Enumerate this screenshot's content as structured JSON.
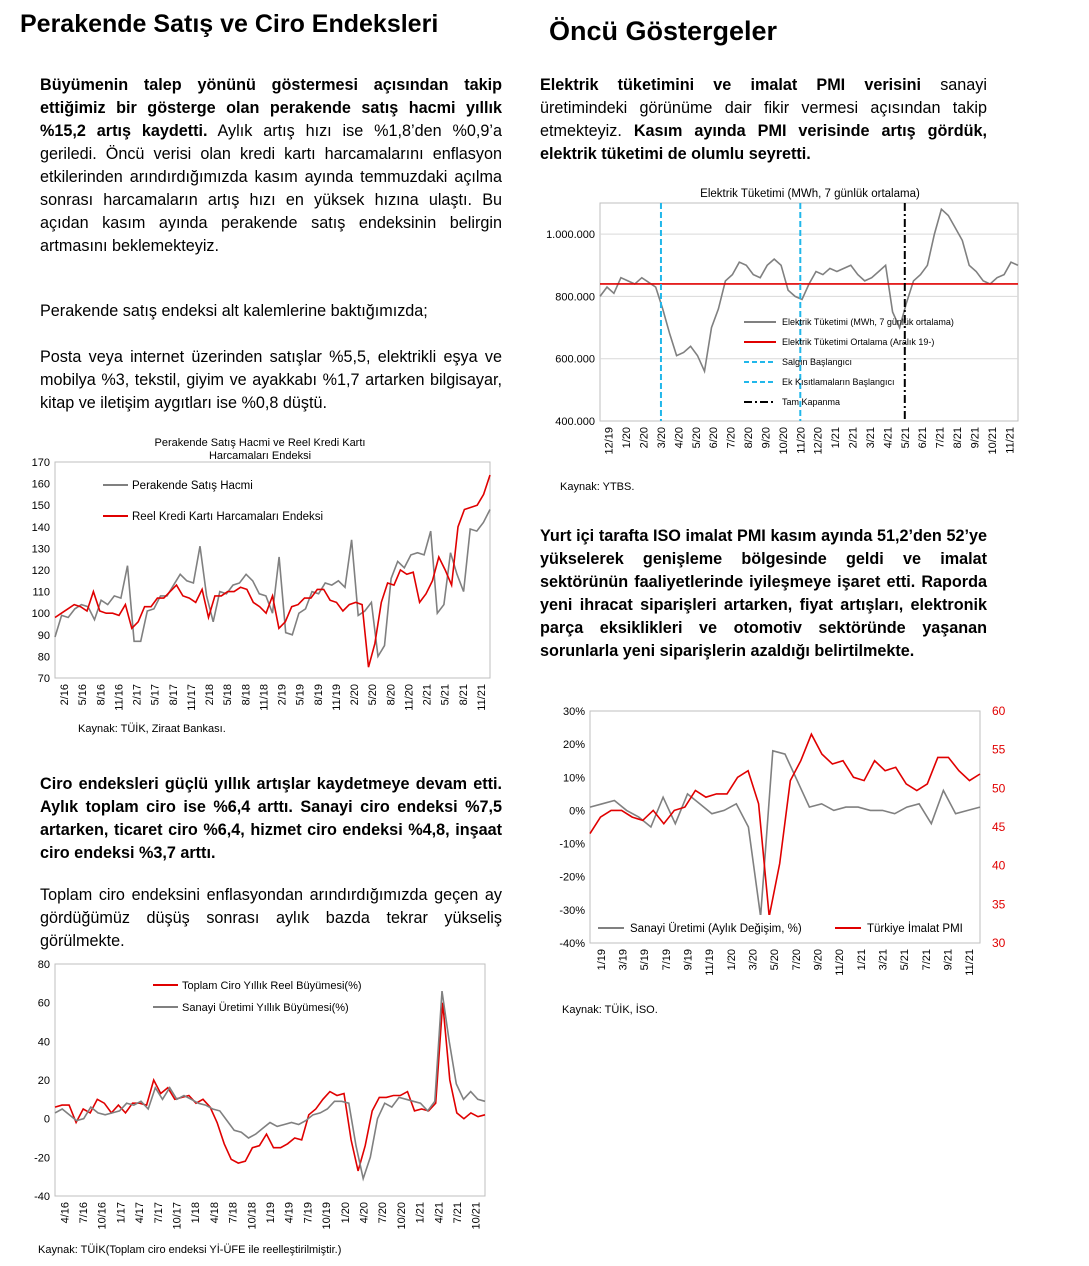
{
  "left": {
    "title": "Perakende Satış ve Ciro Endeksleri",
    "p1_bold": "Büyümenin talep yönünü göstermesi açısından takip ettiğimiz bir gösterge olan perakende satış hacmi yıllık %15,2 artış kaydetti.",
    "p1_rest": " Aylık artış hızı ise %1,8’den %0,9’a geriledi. Öncü verisi olan kredi kartı harcamalarını enflasyon etkilerinden arındırdığımızda kasım ayında temmuzdaki açılma sonrası harcamaların artış hızı en yüksek hızına ulaştı. Bu açıdan kasım ayında perakende satış endeksinin belirgin artmasını beklemekteyiz.",
    "p2": "Perakende satış endeksi alt kalemlerine baktığımızda;",
    "p3": "Posta veya internet üzerinden satışlar %5,5, elektrikli eşya ve mobilya %3, tekstil, giyim ve ayakkabı %1,7 artarken bilgisayar, kitap ve iletişim aygıtları ise %0,8 düştü.",
    "p4_bold": "Ciro endeksleri güçlü yıllık artışlar kaydetmeye devam etti. Aylık toplam ciro ise %6,4 arttı. Sanayi ciro endeksi %7,5 artarken, ticaret ciro %6,4, hizmet ciro endeksi %4,8, inşaat ciro endeksi %3,7 arttı.",
    "p5": "Toplam ciro endeksini enflasyondan arındırdığımızda geçen ay gördüğümüz düşüş sonrası aylık bazda tekrar yükseliş görülmekte.",
    "source1": "Kaynak: TÜİK, Ziraat Bankası.",
    "source2": "Kaynak: TÜİK(Toplam ciro endeksi Yİ-ÜFE ile reelleştirilmiştir.)"
  },
  "right": {
    "title": "Öncü Göstergeler",
    "p1_bold1": "Elektrik tüketimini ve imalat PMI verisini",
    "p1_rest1": " sanayi üretimindeki görünüme dair fikir vermesi açısından takip etmekteyiz. ",
    "p1_bold2": "Kasım ayında PMI verisinde artış gördük, elektrik tüketimi de olumlu seyretti.",
    "p2_bold": "Yurt içi tarafta ISO imalat PMI kasım ayında 51,2’den 52’ye yükselerek genişleme bölgesinde geldi ve imalat sektörünün faaliyetlerinde iyileşmeye işaret etti. Raporda yeni ihracat siparişleri artarken, fiyat artışları, elektronik parça eksiklikleri ve otomotiv sektöründe yaşanan sorunlarla yeni siparişlerin azaldığı belirtilmekte.",
    "source1": "Kaynak: YTBS.",
    "source2": "Kaynak: TÜİK, İSO."
  },
  "chart_data": [
    {
      "id": "retail",
      "type": "line",
      "title": "Perakende Satış Hacmi ve Reel Kredi Kartı Harcamaları Endeksi",
      "ylim": [
        70,
        170
      ],
      "yticks": [
        "70",
        "80",
        "90",
        "100",
        "110",
        "120",
        "130",
        "140",
        "150",
        "160",
        "170"
      ],
      "xticklabels": [
        "2/16",
        "5/16",
        "8/16",
        "11/16",
        "2/17",
        "5/17",
        "8/17",
        "11/17",
        "2/18",
        "5/18",
        "8/18",
        "11/18",
        "2/19",
        "5/19",
        "8/19",
        "11/19",
        "2/20",
        "5/20",
        "8/20",
        "11/20",
        "2/21",
        "5/21",
        "8/21",
        "11/21"
      ],
      "series": [
        {
          "name": "Perakende Satış Hacmi",
          "color": "#808080",
          "values": [
            89,
            99,
            98,
            102,
            104,
            103,
            97,
            106,
            104,
            108,
            107,
            122,
            87,
            87,
            101,
            102,
            108,
            108,
            113,
            118,
            115,
            114,
            131,
            108,
            96,
            110,
            109,
            113,
            114,
            118,
            115,
            109,
            108,
            100,
            126,
            91,
            90,
            100,
            102,
            110,
            109,
            114,
            113,
            115,
            112,
            134,
            99,
            101,
            105,
            80,
            85,
            116,
            124,
            121,
            127,
            128,
            127,
            138,
            100,
            104,
            128,
            118,
            110,
            139,
            138,
            142,
            148
          ]
        },
        {
          "name": "Reel Kredi Kartı Harcamaları Endeksi",
          "color": "#e00000",
          "values": [
            98,
            100,
            102,
            104,
            103,
            101,
            110,
            101,
            100,
            100,
            99,
            104,
            93,
            96,
            103,
            103,
            107,
            107,
            110,
            113,
            108,
            107,
            105,
            111,
            98,
            108,
            108,
            110,
            110,
            112,
            111,
            105,
            103,
            100,
            108,
            93,
            96,
            103,
            104,
            107,
            107,
            111,
            111,
            106,
            105,
            101,
            104,
            105,
            104,
            75,
            86,
            105,
            114,
            113,
            120,
            118,
            119,
            105,
            109,
            115,
            126,
            120,
            113,
            140,
            148,
            149,
            150,
            155,
            164
          ]
        }
      ]
    },
    {
      "id": "turnover",
      "type": "line",
      "ylim": [
        -40,
        80
      ],
      "yticks": [
        "-40",
        "-20",
        "0",
        "20",
        "40",
        "60",
        "80"
      ],
      "xticklabels": [
        "4/16",
        "7/16",
        "10/16",
        "1/17",
        "4/17",
        "7/17",
        "10/17",
        "1/18",
        "4/18",
        "7/18",
        "10/18",
        "1/19",
        "4/19",
        "7/19",
        "10/19",
        "1/20",
        "4/20",
        "7/20",
        "10/20",
        "1/21",
        "4/21",
        "7/21",
        "10/21"
      ],
      "series": [
        {
          "name": "Toplam Ciro Yıllık Reel Büyümesi(%)",
          "color": "#e00000",
          "values": [
            6,
            7,
            7,
            -2,
            5,
            3,
            10,
            8,
            3,
            7,
            3,
            8,
            8,
            7,
            20,
            13,
            16,
            10,
            11,
            12,
            8,
            10,
            6,
            -2,
            -13,
            -21,
            -23,
            -22,
            -15,
            -14,
            -8,
            -15,
            -15,
            -13,
            -10,
            -11,
            2,
            5,
            10,
            14,
            12,
            13,
            -11,
            -27,
            -14,
            4,
            11,
            11,
            12,
            12,
            14,
            4,
            5,
            4,
            8,
            60,
            20,
            3,
            0,
            3,
            1,
            2
          ]
        },
        {
          "name": "Sanayi Üretimi Yıllık Büyümesi(%)",
          "color": "#808080",
          "values": [
            3,
            5,
            2,
            -1,
            0,
            6,
            3,
            2,
            3,
            4,
            8,
            7,
            9,
            5,
            16,
            10,
            16,
            10,
            12,
            10,
            8,
            7,
            5,
            4,
            -1,
            -6,
            -7,
            -10,
            -8,
            -5,
            -2,
            -4,
            -3,
            -2,
            -3,
            -1,
            2,
            3,
            5,
            9,
            9,
            8,
            -14,
            -31,
            -20,
            0,
            8,
            6,
            11,
            10,
            9,
            8,
            4,
            9,
            66,
            40,
            18,
            10,
            14,
            10,
            9
          ]
        }
      ]
    },
    {
      "id": "electricity",
      "type": "line",
      "title": "Elektrik Tüketimi (MWh, 7 günlük ortalama)",
      "ylim": [
        400000,
        1100000
      ],
      "yticks": [
        "400.000",
        "600.000",
        "800.000",
        "1.000.000"
      ],
      "xticklabels": [
        "12/19",
        "1/20",
        "2/20",
        "3/20",
        "4/20",
        "5/20",
        "6/20",
        "7/20",
        "8/20",
        "9/20",
        "10/20",
        "11/20",
        "12/20",
        "1/21",
        "2/21",
        "3/21",
        "4/21",
        "5/21",
        "6/21",
        "7/21",
        "8/21",
        "9/21",
        "10/21",
        "11/21"
      ],
      "series": [
        {
          "name": "Elektrik Tüketimi (MWh, 7 günlük ortalama)",
          "color": "#808080",
          "values": [
            800000,
            830000,
            810000,
            860000,
            850000,
            840000,
            860000,
            845000,
            830000,
            760000,
            680000,
            610000,
            620000,
            640000,
            610000,
            560000,
            700000,
            760000,
            850000,
            870000,
            910000,
            900000,
            870000,
            860000,
            900000,
            920000,
            900000,
            820000,
            800000,
            790000,
            840000,
            880000,
            870000,
            890000,
            880000,
            890000,
            900000,
            870000,
            850000,
            860000,
            880000,
            900000,
            750000,
            700000,
            780000,
            850000,
            870000,
            900000,
            1000000,
            1080000,
            1060000,
            1020000,
            980000,
            900000,
            880000,
            850000,
            840000,
            860000,
            870000,
            910000,
            900000
          ]
        },
        {
          "name": "Elektrik Tüketimi Ortalama (Aralık 19-)",
          "color": "#e00000",
          "values": [
            840000
          ]
        }
      ],
      "markers": [
        {
          "name": "Salgın Başlangıcı",
          "color": "#21b7ea",
          "x": "3/20"
        },
        {
          "name": "Ek Kısıtlamaların Başlangıcı",
          "color": "#21b7ea",
          "x": "11/20"
        },
        {
          "name": "Tam Kapanma",
          "color": "#000000",
          "x": "5/21"
        }
      ]
    },
    {
      "id": "pmi",
      "type": "line",
      "ylim_left": [
        -40,
        30
      ],
      "ylim_right": [
        30,
        60
      ],
      "yticks_left": [
        "-40%",
        "-30%",
        "-20%",
        "-10%",
        "0%",
        "10%",
        "20%",
        "30%"
      ],
      "yticks_right": [
        "30",
        "35",
        "40",
        "45",
        "50",
        "55",
        "60"
      ],
      "xticklabels": [
        "1/19",
        "3/19",
        "5/19",
        "7/19",
        "9/19",
        "11/19",
        "1/20",
        "3/20",
        "5/20",
        "7/20",
        "9/20",
        "11/20",
        "1/21",
        "3/21",
        "5/21",
        "7/21",
        "9/21",
        "11/21"
      ],
      "series": [
        {
          "name": "Sanayi Üretimi (Aylık Değişim, %)",
          "color": "#808080",
          "axis": "left",
          "values": [
            1,
            2,
            3,
            0,
            -2,
            -5,
            4,
            -4,
            5,
            2,
            -1,
            0,
            2,
            -5,
            -32,
            18,
            17,
            9,
            1,
            2,
            0,
            1,
            1,
            0,
            0,
            -1,
            1,
            2,
            -4,
            6,
            -1,
            0,
            1
          ]
        },
        {
          "name": "Türkiye İmalat PMI",
          "color": "#e00000",
          "axis": "left",
          "values": [
            -7,
            -2,
            0,
            0,
            -2,
            -3,
            0,
            -4,
            0,
            1,
            6,
            4,
            5,
            5,
            10,
            12,
            2,
            -32,
            -16,
            9,
            15,
            23,
            17,
            14,
            15,
            10,
            9,
            15,
            12,
            13,
            8,
            6,
            8,
            16,
            16,
            12,
            9,
            11
          ]
        }
      ]
    }
  ]
}
